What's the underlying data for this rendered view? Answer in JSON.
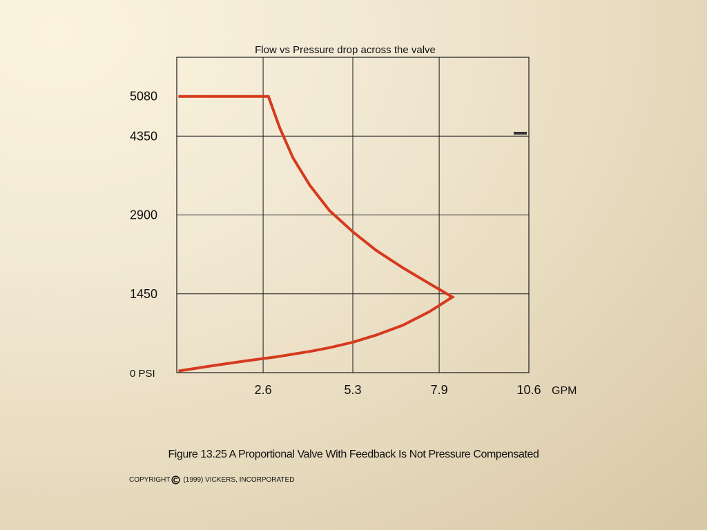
{
  "chart_data": {
    "type": "line",
    "title": "Flow vs Pressure drop across the valve",
    "xlabel": "GPM",
    "ylabel": "",
    "xlim": [
      0,
      10.6
    ],
    "ylim": [
      0,
      5800
    ],
    "x_ticks": [
      2.6,
      5.3,
      7.9,
      10.6
    ],
    "x_tick_labels": [
      "2.6",
      "5.3",
      "7.9",
      "10.6"
    ],
    "y_ticks": [
      0,
      1450,
      2900,
      4350,
      5080
    ],
    "y_tick_labels": [
      "0 PSI",
      "1450",
      "2900",
      "4350",
      "5080"
    ],
    "grid_x": [
      2.6,
      5.3,
      7.9
    ],
    "grid_y": [
      1450,
      2900,
      4350
    ],
    "grid": true,
    "legend": "none",
    "series": [
      {
        "color": "#d63a1e",
        "x": [
          0.05,
          1.0,
          2.0,
          2.76,
          3.1,
          3.5,
          4.0,
          4.6,
          5.3,
          6.0,
          6.8,
          7.6,
          8.3,
          7.6,
          6.8,
          6.0,
          5.3,
          4.6,
          4.0,
          3.0,
          2.0,
          1.0,
          0.05
        ],
        "y": [
          5080,
          5080,
          5080,
          5080,
          4500,
          3950,
          3450,
          2980,
          2590,
          2250,
          1930,
          1640,
          1390,
          1120,
          870,
          690,
          560,
          460,
          390,
          290,
          210,
          120,
          30
        ]
      }
    ]
  },
  "caption": "Figure 13.25 A Proportional Valve With Feedback Is Not Pressure Compensated",
  "copyright": {
    "prefix": "COPYRIGHT",
    "suffix": "(1999) VICKERS, INCORPORATED"
  }
}
